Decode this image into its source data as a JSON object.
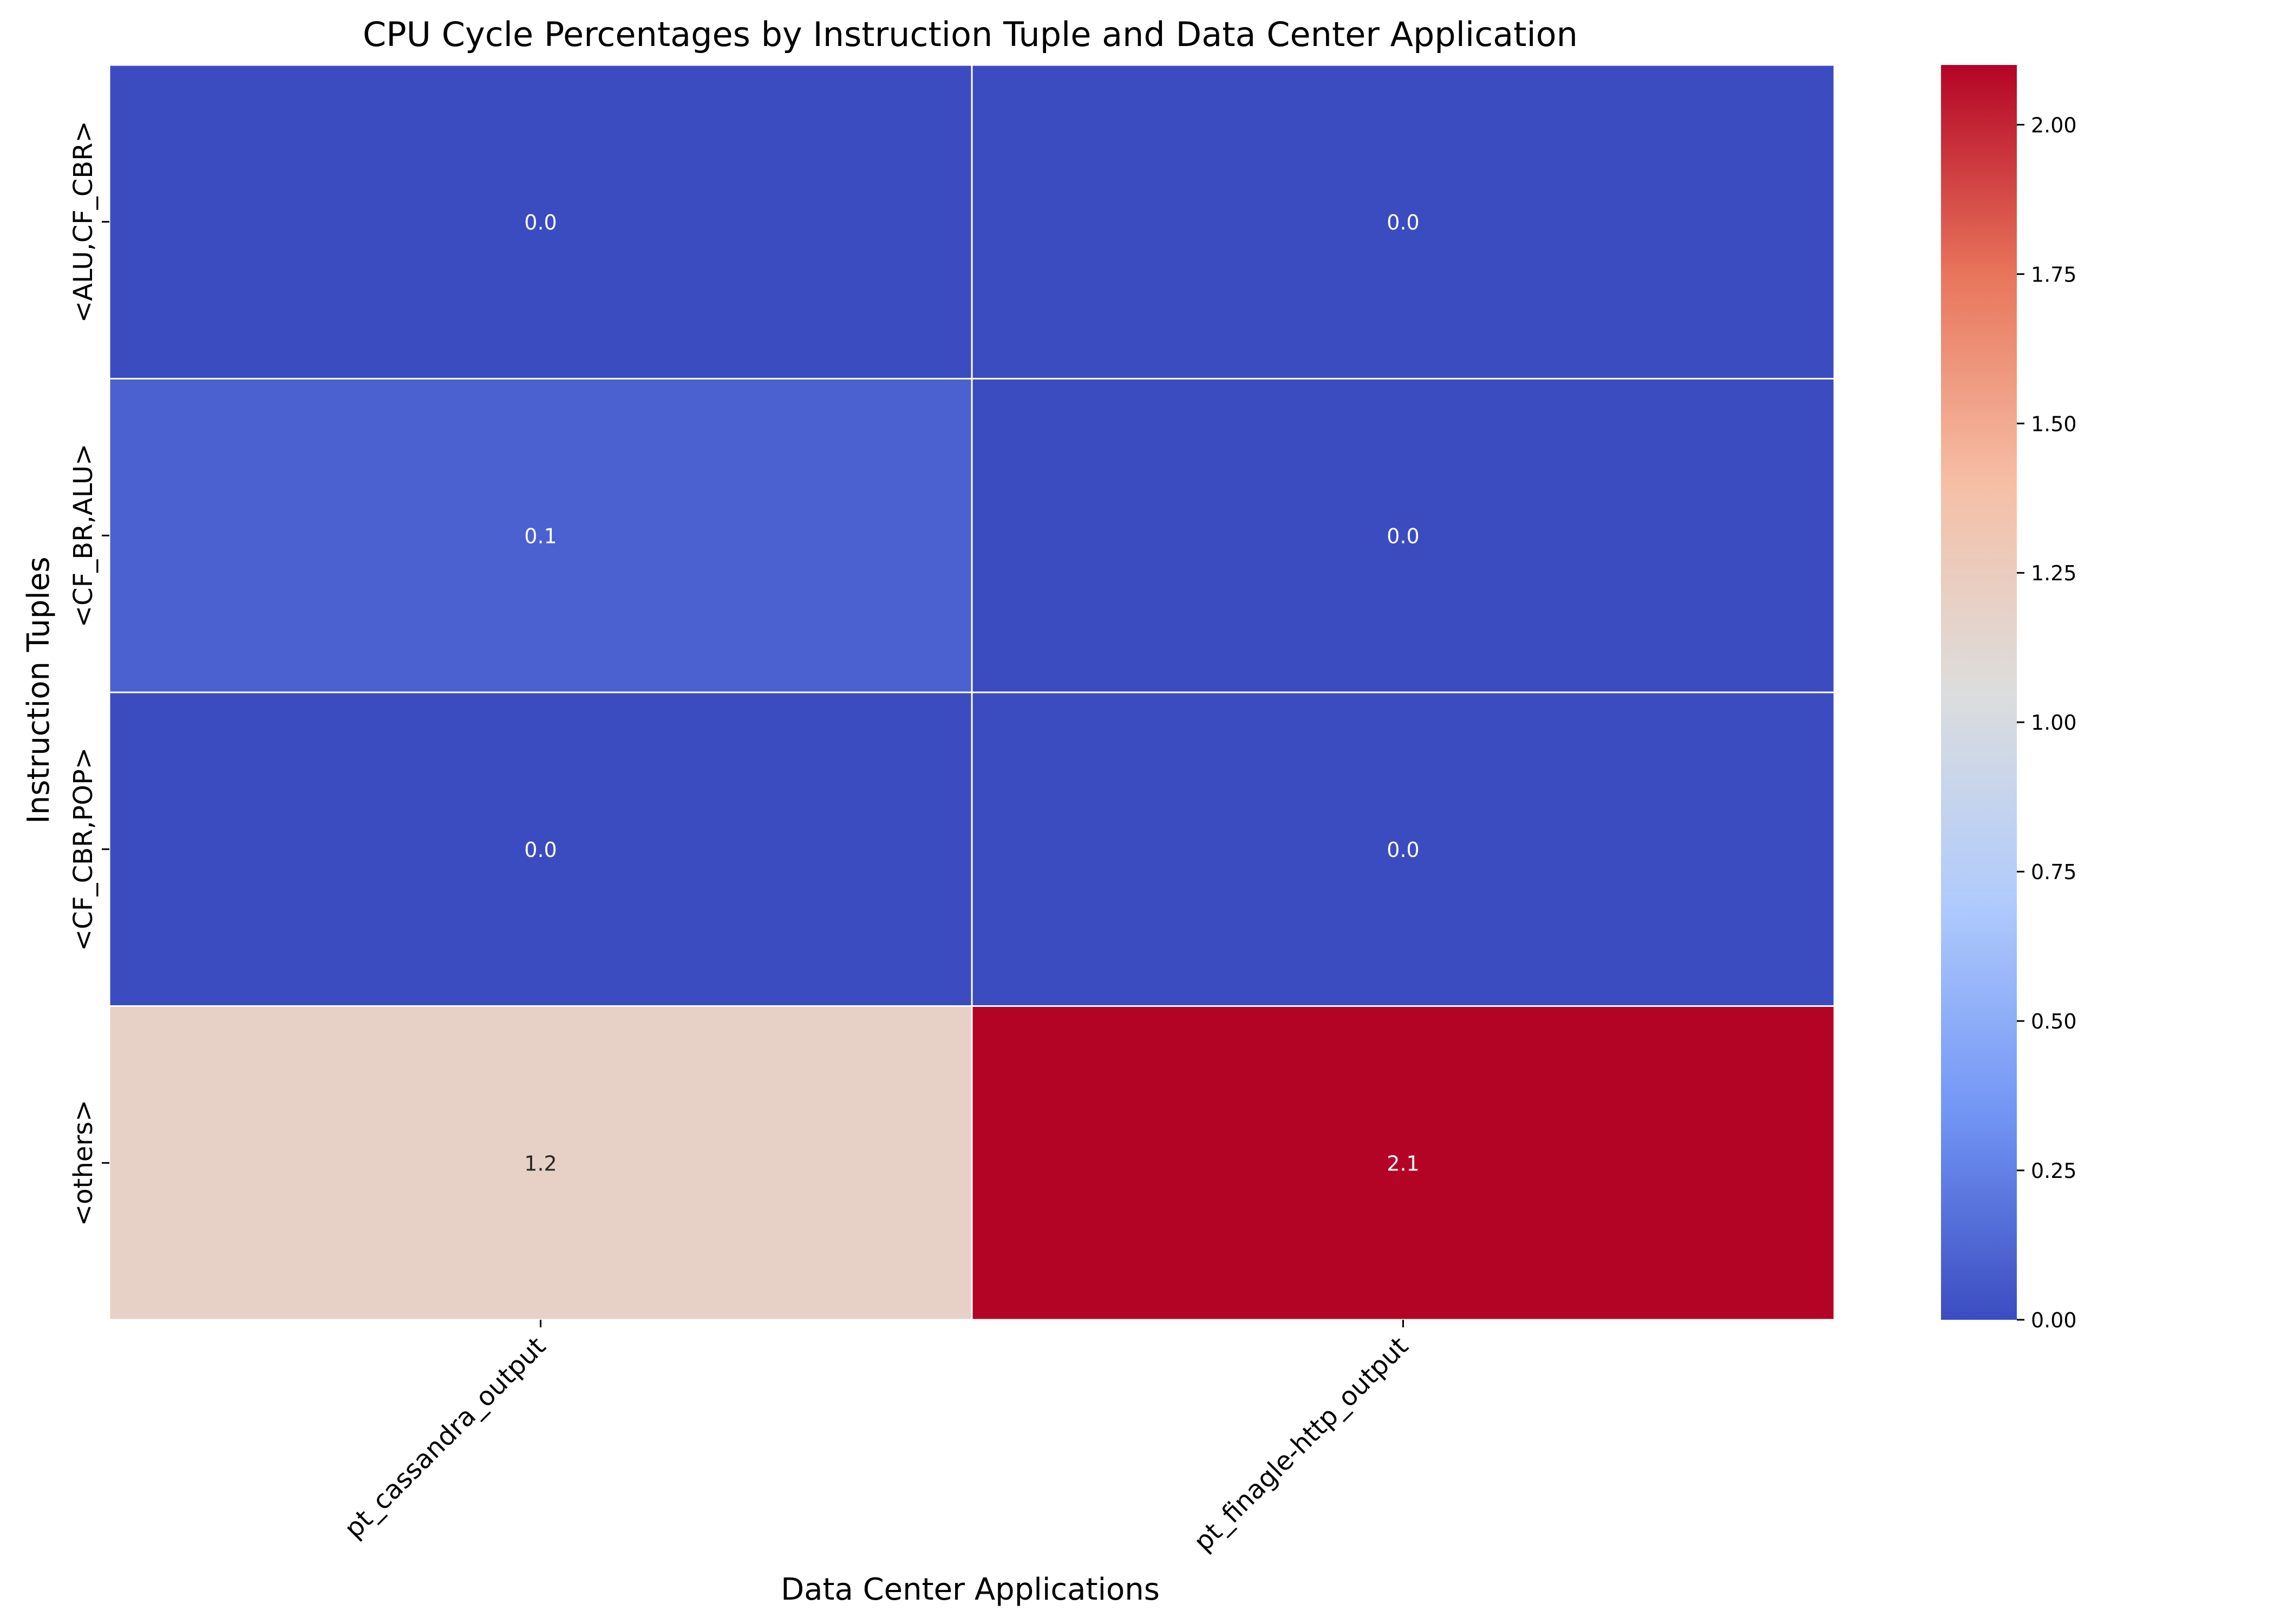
{
  "chart_data": {
    "type": "heatmap",
    "title": "CPU Cycle Percentages by Instruction Tuple and Data Center Application",
    "xlabel": "Data Center Applications",
    "ylabel": "Instruction Tuples",
    "x_categories": [
      "pt_cassandra_output",
      "pt_finagle-http_output"
    ],
    "y_categories": [
      "<ALU,CF_CBR>",
      "<CF_BR,ALU>",
      "<CF_CBR,POP>",
      "<others>"
    ],
    "values": [
      [
        0.0,
        0.0
      ],
      [
        0.1,
        0.0
      ],
      [
        0.0,
        0.0
      ],
      [
        1.2,
        2.1
      ]
    ],
    "annotations": [
      [
        "0.0",
        "0.0"
      ],
      [
        "0.1",
        "0.0"
      ],
      [
        "0.0",
        "0.0"
      ],
      [
        "1.2",
        "2.1"
      ]
    ],
    "colormap": "coolwarm",
    "colorbar": {
      "range": [
        0.0,
        2.1
      ],
      "ticks": [
        0.0,
        0.25,
        0.5,
        0.75,
        1.0,
        1.25,
        1.5,
        1.75,
        2.0
      ],
      "tick_labels": [
        "0.00",
        "0.25",
        "0.50",
        "0.75",
        "1.00",
        "1.25",
        "1.50",
        "1.75",
        "2.00"
      ]
    },
    "cell_border_color": "#ffffff",
    "colormap_stops": [
      "#3b4cc0",
      "#7396f5",
      "#b0cbfc",
      "#dcdddd",
      "#f6bfa6",
      "#e8755b",
      "#b40426"
    ]
  }
}
